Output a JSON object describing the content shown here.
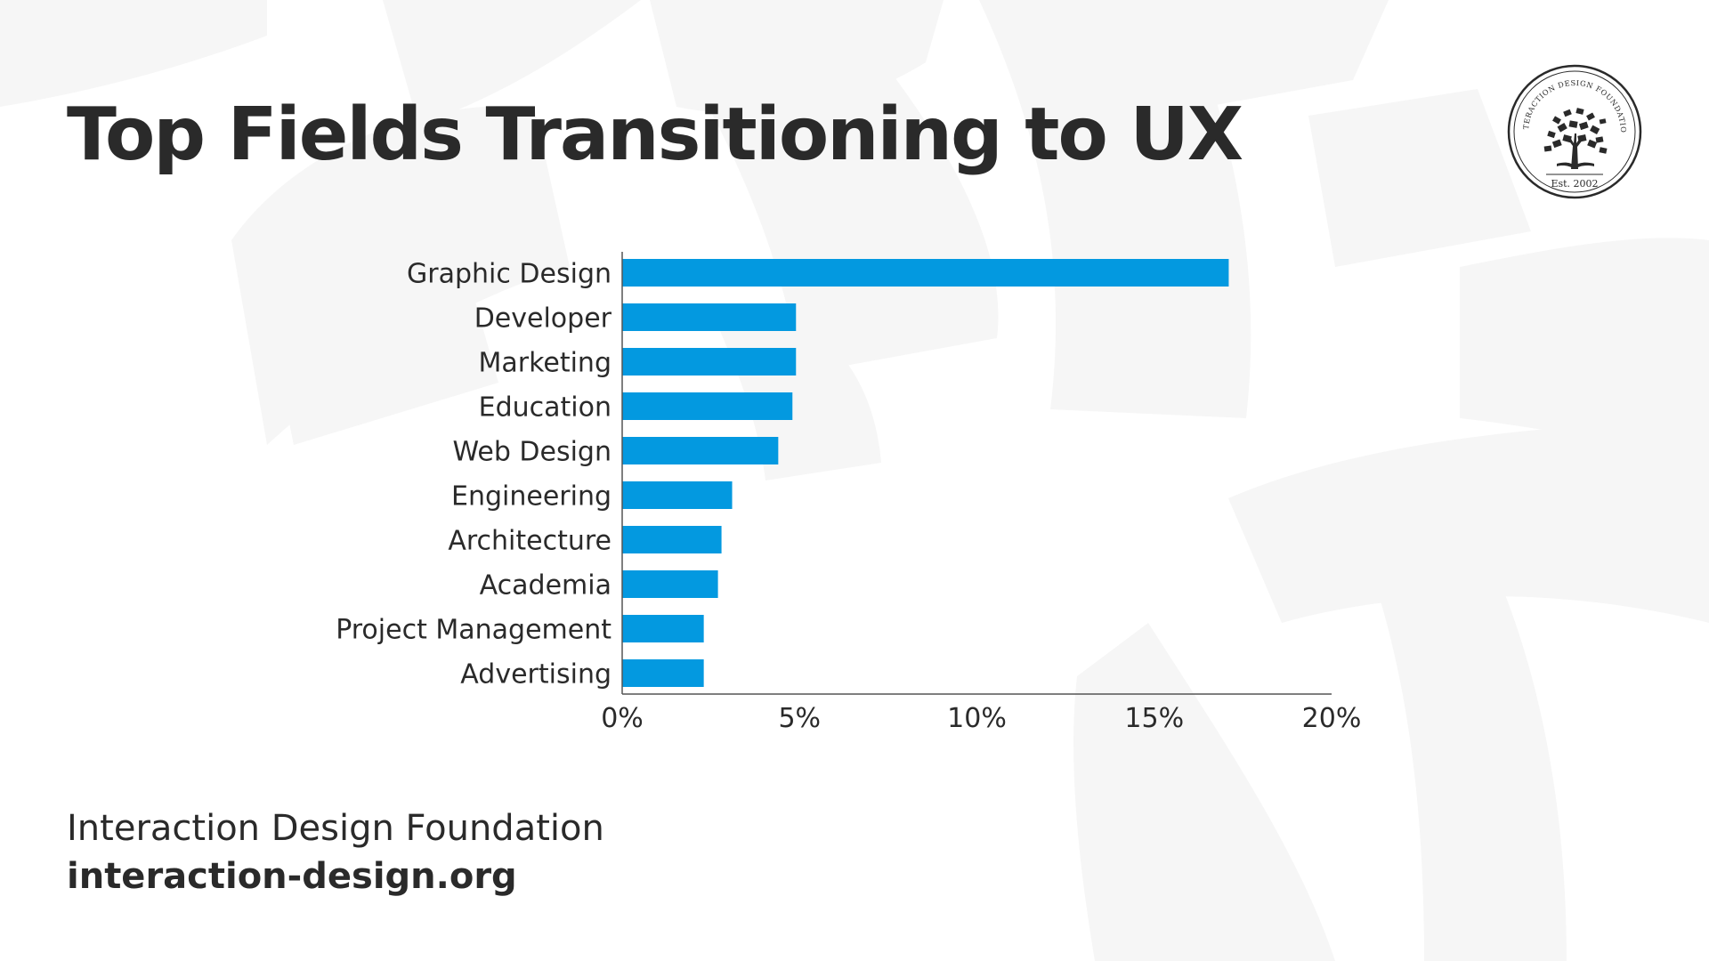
{
  "title": "Top Fields Transitioning to UX",
  "logo": {
    "ring_text": "INTERACTION DESIGN FOUNDATION",
    "est": "Est. 2002"
  },
  "footer": {
    "name": "Interaction Design Foundation",
    "url": "interaction-design.org"
  },
  "colors": {
    "bar": "#0399e0",
    "text": "#2a2a2a",
    "axis": "#555555",
    "background_art": "#f6f6f6"
  },
  "icons": {
    "logo": "tree-books-icon"
  },
  "chart_data": {
    "type": "bar",
    "orientation": "horizontal",
    "title": "Top Fields Transitioning to UX",
    "categories": [
      "Graphic Design",
      "Developer",
      "Marketing",
      "Education",
      "Web Design",
      "Engineering",
      "Architecture",
      "Academia",
      "Project Management",
      "Advertising"
    ],
    "values": [
      17.1,
      4.9,
      4.9,
      4.8,
      4.4,
      3.1,
      2.8,
      2.7,
      2.3,
      2.3
    ],
    "unit": "%",
    "xlim": [
      0,
      20
    ],
    "x_ticks": [
      "0%",
      "5%",
      "10%",
      "15%",
      "20%"
    ],
    "xlabel": "",
    "ylabel": "",
    "grid": false,
    "legend": "none"
  }
}
